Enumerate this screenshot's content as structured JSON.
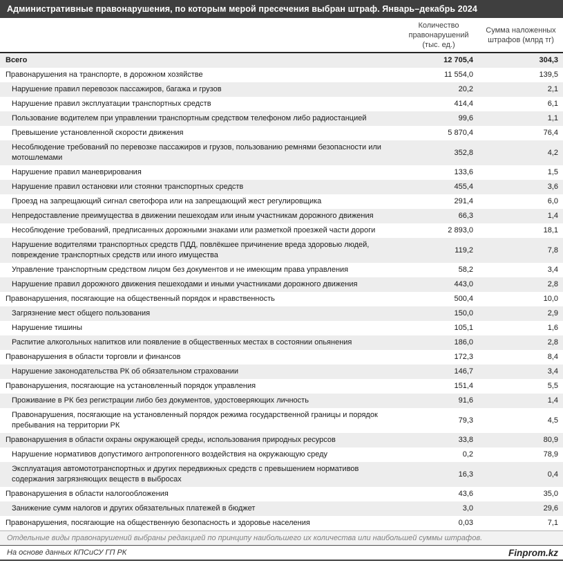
{
  "title": "Административные правонарушения, по которым мерой пресечения выбран штраф. Январь–декабрь 2024",
  "chart_data": {
    "type": "table",
    "title": "Административные правонарушения, по которым мерой пресечения выбран штраф. Январь–декабрь 2024",
    "columns": [
      "",
      "Количество правонарушений (тыс. ед.)",
      "Сумма наложенных штрафов (млрд тг)"
    ],
    "rows": [
      {
        "label": "Всего",
        "level": 0,
        "bold": true,
        "count": "12 705,4",
        "fines": "304,3"
      },
      {
        "label": "Правонарушения на транспорте, в дорожном хозяйстве",
        "level": 0,
        "bold": false,
        "count": "11 554,0",
        "fines": "139,5"
      },
      {
        "label": "Нарушение правил перевозок пассажиров, багажа и грузов",
        "level": 1,
        "bold": false,
        "count": "20,2",
        "fines": "2,1"
      },
      {
        "label": "Нарушение правил эксплуатации транспортных средств",
        "level": 1,
        "bold": false,
        "count": "414,4",
        "fines": "6,1"
      },
      {
        "label": "Пользование водителем при управлении транспортным средством телефоном либо радиостанцией",
        "level": 1,
        "bold": false,
        "count": "99,6",
        "fines": "1,1"
      },
      {
        "label": "Превышение установленной скорости движения",
        "level": 1,
        "bold": false,
        "count": "5 870,4",
        "fines": "76,4"
      },
      {
        "label": "Несоблюдение требований по перевозке пассажиров и грузов, пользованию ремнями безопасности или мотошлемами",
        "level": 1,
        "bold": false,
        "count": "352,8",
        "fines": "4,2"
      },
      {
        "label": "Нарушение правил маневрирования",
        "level": 1,
        "bold": false,
        "count": "133,6",
        "fines": "1,5"
      },
      {
        "label": "Нарушение правил остановки или стоянки транспортных средств",
        "level": 1,
        "bold": false,
        "count": "455,4",
        "fines": "3,6"
      },
      {
        "label": "Проезд на запрещающий сигнал светофора или на запрещающий жест регулировщика",
        "level": 1,
        "bold": false,
        "count": "291,4",
        "fines": "6,0"
      },
      {
        "label": "Непредоставление преимущества в движении пешеходам или иным участникам дорожного движения",
        "level": 1,
        "bold": false,
        "count": "66,3",
        "fines": "1,4"
      },
      {
        "label": "Несоблюдение требований, предписанных дорожными знаками или разметкой проезжей части дороги",
        "level": 1,
        "bold": false,
        "count": "2 893,0",
        "fines": "18,1"
      },
      {
        "label": "Нарушение водителями транспортных средств ПДД, повлёкшее причинение вреда здоровью людей, повреждение транспортных средств или иного имущества",
        "level": 1,
        "bold": false,
        "count": "119,2",
        "fines": "7,8"
      },
      {
        "label": "Управление транспортным средством лицом без документов и не имеющим права управления",
        "level": 1,
        "bold": false,
        "count": "58,2",
        "fines": "3,4"
      },
      {
        "label": "Нарушение правил дорожного движения пешеходами и иными участниками дорожного движения",
        "level": 1,
        "bold": false,
        "count": "443,0",
        "fines": "2,8"
      },
      {
        "label": "Правонарушения, посягающие на общественный порядок и нравственность",
        "level": 0,
        "bold": false,
        "count": "500,4",
        "fines": "10,0"
      },
      {
        "label": "Загрязнение мест общего пользования",
        "level": 1,
        "bold": false,
        "count": "150,0",
        "fines": "2,9"
      },
      {
        "label": "Нарушение тишины",
        "level": 1,
        "bold": false,
        "count": "105,1",
        "fines": "1,6"
      },
      {
        "label": "Распитие алкогольных напитков или появление в общественных местах в состоянии опьянения",
        "level": 1,
        "bold": false,
        "count": "186,0",
        "fines": "2,8"
      },
      {
        "label": "Правонарушения в области торговли и финансов",
        "level": 0,
        "bold": false,
        "count": "172,3",
        "fines": "8,4"
      },
      {
        "label": "Нарушение законодательства РК об обязательном страховании",
        "level": 1,
        "bold": false,
        "count": "146,7",
        "fines": "3,4"
      },
      {
        "label": "Правонарушения, посягающие на установленный порядок управления",
        "level": 0,
        "bold": false,
        "count": "151,4",
        "fines": "5,5"
      },
      {
        "label": "Проживание в РК без регистрации либо без документов, удостоверяющих личность",
        "level": 1,
        "bold": false,
        "count": "91,6",
        "fines": "1,4"
      },
      {
        "label": "Правонарушения, посягающие на установленный порядок режима государственной границы и порядок пребывания на территории РК",
        "level": 1,
        "bold": false,
        "count": "79,3",
        "fines": "4,5"
      },
      {
        "label": "Правонарушения в области охраны окружающей среды, использования природных ресурсов",
        "level": 0,
        "bold": false,
        "count": "33,8",
        "fines": "80,9"
      },
      {
        "label": "Нарушение нормативов допустимого антропогенного воздействия на окружающую среду",
        "level": 1,
        "bold": false,
        "count": "0,2",
        "fines": "78,9"
      },
      {
        "label": "Эксплуатация автомототранспортных и других передвижных средств с превышением нормативов содержания загрязняющих веществ в выбросах",
        "level": 1,
        "bold": false,
        "count": "16,3",
        "fines": "0,4"
      },
      {
        "label": "Правонарушения в области налогообложения",
        "level": 0,
        "bold": false,
        "count": "43,6",
        "fines": "35,0"
      },
      {
        "label": "Занижение сумм налогов и других обязательных платежей в бюджет",
        "level": 1,
        "bold": false,
        "count": "3,0",
        "fines": "29,6"
      },
      {
        "label": "Правонарушения, посягающие на общественную безопасность и здоровье населения",
        "level": 0,
        "bold": false,
        "count": "0,03",
        "fines": "7,1"
      }
    ]
  },
  "footer": {
    "note": "Отдельные виды правонарушений выбраны редакцией по принципу наибольшего их количества или наибольшей суммы штрафов.",
    "source": "На основе данных КПСиСУ ГП РК",
    "brand": "Finprom.kz"
  },
  "colors": {
    "title_bg": "#3f3f3f",
    "title_text": "#ffffff",
    "row_alt_bg": "#ededed",
    "note_bg": "#f2f2f2",
    "header_rule": "#262626"
  }
}
